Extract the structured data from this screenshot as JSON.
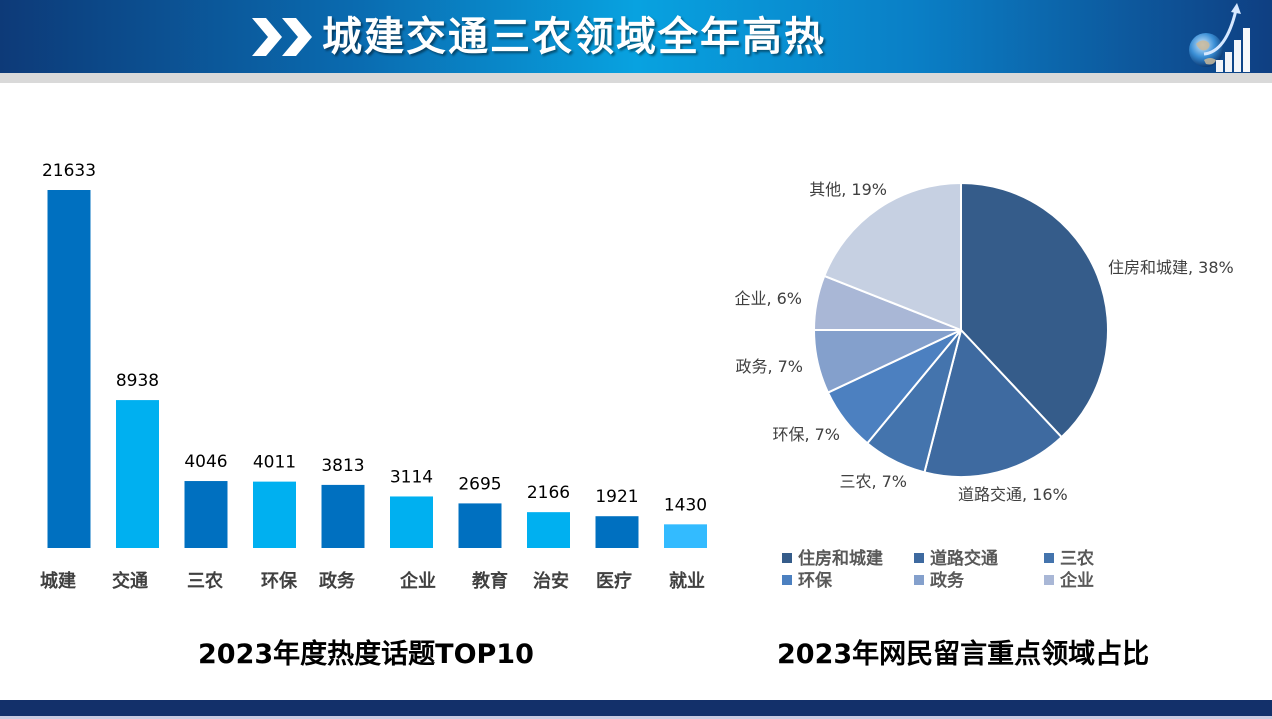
{
  "header": {
    "title": "城建交通三农领域全年高热",
    "chevron_icon": "double-chevron-right-icon",
    "logo_icon": "globe-growth-chart-icon"
  },
  "chart_data": [
    {
      "type": "bar",
      "title": "2023年度热度话题TOP10",
      "xlabel": "",
      "ylabel": "",
      "ylim": [
        0,
        21633
      ],
      "grid": false,
      "categories": [
        "城建",
        "交通",
        "三农",
        "环保",
        "政务",
        "企业",
        "教育",
        "治安",
        "医疗",
        "就业"
      ],
      "values": [
        21633,
        8938,
        4046,
        4011,
        3813,
        3114,
        2695,
        2166,
        1921,
        1430
      ],
      "data_labels": [
        "21633",
        "8938",
        "4046",
        "4011",
        "3813",
        "3114",
        "2695",
        "2166",
        "1921",
        "1430"
      ],
      "colors": [
        "#0070c0",
        "#00b0f0",
        "#0070c0",
        "#00b0f0",
        "#0070c0",
        "#00b0f0",
        "#0070c0",
        "#00b0f0",
        "#0070c0",
        "#33bbff"
      ]
    },
    {
      "type": "pie",
      "title": "2023年网民留言重点领域占比",
      "slices": [
        {
          "label": "住房和城建",
          "value": 38,
          "data_label": "住房和城建, 38%",
          "color": "#355c8a"
        },
        {
          "label": "道路交通",
          "value": 16,
          "data_label": "道路交通, 16%",
          "color": "#3e6aa0"
        },
        {
          "label": "三农",
          "value": 7,
          "data_label": "三农, 7%",
          "color": "#4474ad"
        },
        {
          "label": "环保",
          "value": 7,
          "data_label": "环保, 7%",
          "color": "#4c80c0"
        },
        {
          "label": "政务",
          "value": 7,
          "data_label": "政务, 7%",
          "color": "#84a0cc"
        },
        {
          "label": "企业",
          "value": 6,
          "data_label": "企业, 6%",
          "color": "#a9b7d6"
        },
        {
          "label": "其他",
          "value": 19,
          "data_label": "其他, 19%",
          "color": "#c6d0e2"
        }
      ],
      "legend": {
        "placement": "bottom",
        "entries": [
          "住房和城建",
          "道路交通",
          "三农",
          "环保",
          "政务",
          "企业"
        ]
      }
    }
  ]
}
